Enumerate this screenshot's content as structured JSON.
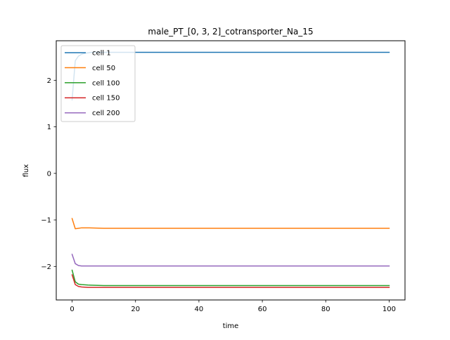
{
  "chart_data": {
    "type": "line",
    "title": "male_PT_[0, 3, 2]_cotransporter_Na_15",
    "xlabel": "time",
    "ylabel": "flux",
    "xlim": [
      -5,
      105
    ],
    "ylim": [
      -2.72,
      2.85
    ],
    "xticks": [
      0,
      20,
      40,
      60,
      80,
      100
    ],
    "yticks": [
      -2,
      -1,
      0,
      1,
      2
    ],
    "grid": false,
    "legend_position": "top-left",
    "series": [
      {
        "name": "cell 1",
        "color": "#1f77b4",
        "x": [
          0,
          1,
          2,
          3,
          4,
          6,
          10,
          20,
          40,
          60,
          80,
          100
        ],
        "y": [
          1.58,
          2.42,
          2.52,
          2.56,
          2.58,
          2.6,
          2.6,
          2.6,
          2.6,
          2.6,
          2.6,
          2.6
        ]
      },
      {
        "name": "cell 50",
        "color": "#ff7f0e",
        "x": [
          0,
          1,
          2,
          3,
          5,
          10,
          20,
          40,
          60,
          80,
          100
        ],
        "y": [
          -0.97,
          -1.19,
          -1.18,
          -1.17,
          -1.17,
          -1.18,
          -1.18,
          -1.18,
          -1.18,
          -1.18,
          -1.18
        ]
      },
      {
        "name": "cell 100",
        "color": "#2ca02c",
        "x": [
          0,
          1,
          2,
          3,
          5,
          10,
          20,
          40,
          60,
          80,
          100
        ],
        "y": [
          -2.08,
          -2.33,
          -2.38,
          -2.39,
          -2.4,
          -2.41,
          -2.41,
          -2.41,
          -2.41,
          -2.41,
          -2.41
        ]
      },
      {
        "name": "cell 150",
        "color": "#d62728",
        "x": [
          0,
          1,
          2,
          3,
          5,
          10,
          20,
          40,
          60,
          80,
          100
        ],
        "y": [
          -2.18,
          -2.39,
          -2.43,
          -2.44,
          -2.45,
          -2.45,
          -2.45,
          -2.45,
          -2.45,
          -2.45,
          -2.45
        ]
      },
      {
        "name": "cell 200",
        "color": "#9467bd",
        "x": [
          0,
          1,
          2,
          3,
          5,
          10,
          20,
          40,
          60,
          80,
          100
        ],
        "y": [
          -1.74,
          -1.94,
          -1.98,
          -1.99,
          -1.99,
          -1.99,
          -1.99,
          -1.99,
          -1.99,
          -1.99,
          -1.99
        ]
      }
    ]
  }
}
